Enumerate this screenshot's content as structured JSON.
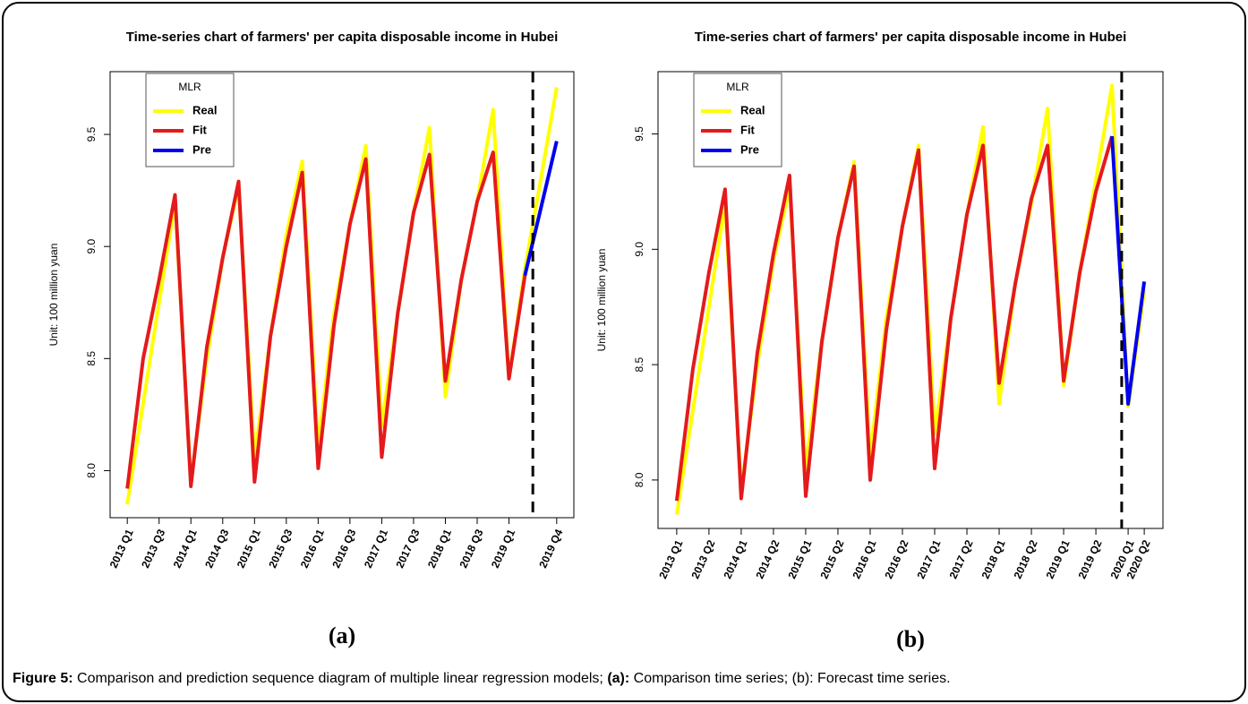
{
  "chart_data": [
    {
      "type": "line",
      "title": "Time-series chart of farmers' per capita disposable income in Hubei",
      "y_label": "Unit: 100 million yuan",
      "panel_label": "(a)",
      "legend_title": "MLR",
      "legend": "top-left",
      "categories": [
        "2013 Q1",
        null,
        "2013 Q3",
        null,
        "2014 Q1",
        null,
        "2014 Q3",
        null,
        "2015 Q1",
        null,
        "2015 Q3",
        null,
        "2016 Q1",
        null,
        "2016 Q3",
        null,
        "2017 Q1",
        null,
        "2017 Q3",
        null,
        "2018 Q1",
        null,
        "2018 Q3",
        null,
        "2019 Q1",
        null,
        null,
        "2019 Q4"
      ],
      "series": [
        {
          "name": "Real",
          "color": "#ffff00",
          "values": [
            7.85,
            8.3,
            8.75,
            9.2,
            7.95,
            8.5,
            8.95,
            9.27,
            8.05,
            8.6,
            9.05,
            9.38,
            8.1,
            8.7,
            9.1,
            9.45,
            8.2,
            8.7,
            9.15,
            9.53,
            8.33,
            8.85,
            9.2,
            9.61,
            8.41,
            8.9,
            9.3,
            9.71
          ]
        },
        {
          "name": "Fit",
          "color": "#e41a1c",
          "values": [
            7.92,
            8.5,
            8.85,
            9.23,
            7.93,
            8.55,
            8.95,
            9.29,
            7.95,
            8.6,
            9.0,
            9.33,
            8.01,
            8.65,
            9.1,
            9.39,
            8.06,
            8.7,
            9.15,
            9.41,
            8.4,
            8.85,
            9.2,
            9.42,
            8.41,
            8.87,
            null,
            null
          ]
        },
        {
          "name": "Pre",
          "color": "#0000ee",
          "values": [
            null,
            null,
            null,
            null,
            null,
            null,
            null,
            null,
            null,
            null,
            null,
            null,
            null,
            null,
            null,
            null,
            null,
            null,
            null,
            null,
            null,
            null,
            null,
            null,
            null,
            8.87,
            9.17,
            9.47
          ]
        }
      ],
      "forecast_line": 25.5,
      "ylim": [
        7.79,
        9.78
      ],
      "yticks": [
        {
          "value": 8,
          "label": "8.0"
        },
        8.5,
        {
          "value": 9,
          "label": "9.0"
        },
        9.5
      ]
    },
    {
      "type": "line",
      "title": "Time-series chart of farmers' per capita disposable income in Hubei",
      "y_label": "Unit: 100 million yuan",
      "panel_label": "(b)",
      "legend_title": "MLR",
      "legend": "top-left",
      "categories": [
        "2013 Q1",
        null,
        "2013 Q2",
        null,
        "2014 Q1",
        null,
        "2014 Q2",
        null,
        "2015 Q1",
        null,
        "2015 Q2",
        null,
        "2016 Q1",
        null,
        "2016 Q2",
        null,
        "2017 Q1",
        null,
        "2017 Q2",
        null,
        "2018 Q1",
        null,
        "2018 Q2",
        null,
        "2019 Q1",
        null,
        "2019 Q2",
        null,
        "2020 Q1",
        "2020 Q2"
      ],
      "series": [
        {
          "name": "Real",
          "color": "#ffff00",
          "values": [
            7.85,
            8.3,
            8.75,
            9.2,
            7.95,
            8.5,
            8.95,
            9.27,
            8.05,
            8.6,
            9.05,
            9.38,
            8.1,
            8.7,
            9.1,
            9.45,
            8.2,
            8.7,
            9.15,
            9.53,
            8.33,
            8.85,
            9.2,
            9.61,
            8.41,
            8.9,
            9.3,
            9.71,
            8.32,
            8.82
          ]
        },
        {
          "name": "Fit",
          "color": "#e41a1c",
          "values": [
            7.91,
            8.48,
            8.9,
            9.26,
            7.92,
            8.55,
            8.98,
            9.32,
            7.93,
            8.6,
            9.05,
            9.36,
            8.0,
            8.65,
            9.1,
            9.43,
            8.05,
            8.7,
            9.15,
            9.45,
            8.42,
            8.85,
            9.22,
            9.45,
            8.43,
            8.9,
            9.25,
            9.49,
            null,
            null
          ]
        },
        {
          "name": "Pre",
          "color": "#0000ee",
          "values": [
            null,
            null,
            null,
            null,
            null,
            null,
            null,
            null,
            null,
            null,
            null,
            null,
            null,
            null,
            null,
            null,
            null,
            null,
            null,
            null,
            null,
            null,
            null,
            null,
            null,
            null,
            null,
            9.49,
            8.33,
            8.86
          ]
        }
      ],
      "forecast_line": 27.6,
      "ylim": [
        7.79,
        9.77
      ],
      "yticks": [
        {
          "value": 8,
          "label": "8.0"
        },
        8.5,
        {
          "value": 9,
          "label": "9.0"
        },
        9.5
      ]
    }
  ],
  "caption": [
    {
      "text": "Figure 5:",
      "bold": true
    },
    {
      "text": " Comparison and prediction sequence diagram of multiple linear regression models; ",
      "bold": false
    },
    {
      "text": "(a):",
      "bold": true
    },
    {
      "text": " Comparison time series; (b): Forecast time series.",
      "bold": false
    }
  ]
}
